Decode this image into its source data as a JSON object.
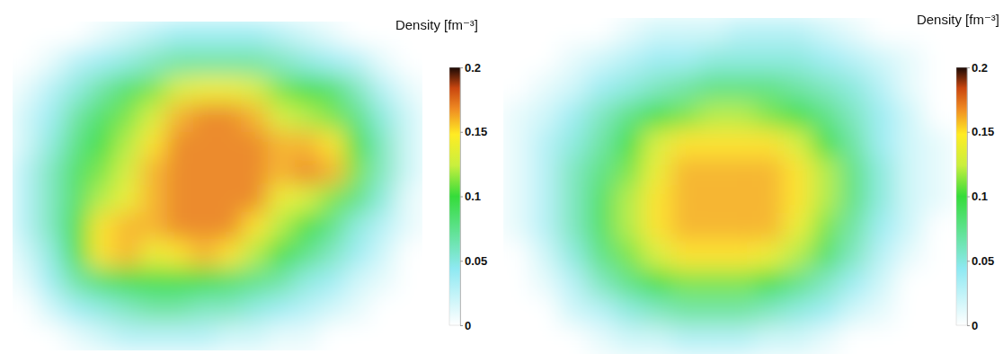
{
  "chart_data": [
    {
      "type": "heatmap",
      "title": "Density [fm⁻³]",
      "colorbar": {
        "range": [
          0,
          0.2
        ],
        "ticks": [
          0,
          0.05,
          0.1,
          0.15,
          0.2
        ]
      },
      "cells": [
        [
          0,
          0,
          0,
          0.01,
          0.02,
          0.03,
          0.04,
          0.04,
          0.04,
          0.04,
          0.03,
          0.02,
          0.01,
          0,
          0,
          0
        ],
        [
          0,
          0.01,
          0.03,
          0.04,
          0.05,
          0.06,
          0.07,
          0.07,
          0.07,
          0.07,
          0.06,
          0.05,
          0.04,
          0.03,
          0.01,
          0
        ],
        [
          0.01,
          0.03,
          0.05,
          0.07,
          0.09,
          0.11,
          0.13,
          0.14,
          0.14,
          0.13,
          0.11,
          0.1,
          0.09,
          0.06,
          0.03,
          0.01
        ],
        [
          0.02,
          0.04,
          0.07,
          0.09,
          0.11,
          0.13,
          0.16,
          0.17,
          0.17,
          0.16,
          0.13,
          0.12,
          0.11,
          0.08,
          0.05,
          0.02
        ],
        [
          0.02,
          0.05,
          0.08,
          0.1,
          0.12,
          0.15,
          0.17,
          0.17,
          0.17,
          0.17,
          0.16,
          0.16,
          0.15,
          0.1,
          0.06,
          0.02
        ],
        [
          0.03,
          0.06,
          0.09,
          0.11,
          0.13,
          0.16,
          0.17,
          0.17,
          0.17,
          0.17,
          0.16,
          0.17,
          0.16,
          0.11,
          0.06,
          0.02
        ],
        [
          0.03,
          0.06,
          0.09,
          0.12,
          0.14,
          0.16,
          0.17,
          0.17,
          0.17,
          0.17,
          0.14,
          0.13,
          0.11,
          0.08,
          0.05,
          0.01
        ],
        [
          0.03,
          0.06,
          0.1,
          0.15,
          0.16,
          0.16,
          0.17,
          0.17,
          0.17,
          0.15,
          0.12,
          0.1,
          0.08,
          0.05,
          0.03,
          0.01
        ],
        [
          0.02,
          0.05,
          0.1,
          0.15,
          0.16,
          0.14,
          0.15,
          0.16,
          0.15,
          0.12,
          0.1,
          0.08,
          0.06,
          0.04,
          0.02,
          0
        ],
        [
          0.01,
          0.04,
          0.07,
          0.09,
          0.1,
          0.1,
          0.1,
          0.1,
          0.09,
          0.08,
          0.07,
          0.05,
          0.04,
          0.02,
          0.01,
          0
        ],
        [
          0,
          0.02,
          0.04,
          0.05,
          0.06,
          0.07,
          0.07,
          0.06,
          0.06,
          0.05,
          0.04,
          0.03,
          0.02,
          0.01,
          0,
          0
        ],
        [
          0,
          0,
          0.01,
          0.02,
          0.03,
          0.03,
          0.03,
          0.03,
          0.02,
          0.02,
          0.01,
          0.01,
          0,
          0,
          0,
          0
        ]
      ]
    },
    {
      "type": "heatmap",
      "title": "Density [fm⁻³]",
      "colorbar": {
        "range": [
          0,
          0.2
        ],
        "ticks": [
          0,
          0.05,
          0.1,
          0.15,
          0.2
        ]
      },
      "cells": [
        [
          0,
          0,
          0,
          0,
          0.01,
          0.02,
          0.02,
          0.02,
          0.03,
          0.03,
          0.03,
          0.02,
          0.01,
          0,
          0,
          0
        ],
        [
          0,
          0,
          0.01,
          0.02,
          0.03,
          0.04,
          0.04,
          0.05,
          0.05,
          0.05,
          0.05,
          0.04,
          0.03,
          0.02,
          0.01,
          0
        ],
        [
          0,
          0.01,
          0.02,
          0.04,
          0.05,
          0.06,
          0.07,
          0.08,
          0.08,
          0.08,
          0.07,
          0.06,
          0.05,
          0.03,
          0.01,
          0
        ],
        [
          0.01,
          0.02,
          0.04,
          0.06,
          0.08,
          0.1,
          0.11,
          0.12,
          0.12,
          0.11,
          0.1,
          0.08,
          0.06,
          0.04,
          0.02,
          0
        ],
        [
          0.01,
          0.03,
          0.05,
          0.07,
          0.1,
          0.13,
          0.15,
          0.15,
          0.15,
          0.15,
          0.13,
          0.1,
          0.07,
          0.04,
          0.02,
          0.01
        ],
        [
          0.01,
          0.03,
          0.06,
          0.08,
          0.11,
          0.14,
          0.16,
          0.16,
          0.16,
          0.16,
          0.15,
          0.12,
          0.08,
          0.05,
          0.02,
          0.01
        ],
        [
          0.01,
          0.03,
          0.06,
          0.09,
          0.12,
          0.15,
          0.16,
          0.16,
          0.16,
          0.16,
          0.15,
          0.12,
          0.08,
          0.05,
          0.02,
          0.01
        ],
        [
          0.01,
          0.03,
          0.06,
          0.09,
          0.12,
          0.15,
          0.16,
          0.16,
          0.16,
          0.16,
          0.14,
          0.11,
          0.07,
          0.04,
          0.02,
          0
        ],
        [
          0,
          0.02,
          0.05,
          0.08,
          0.11,
          0.13,
          0.15,
          0.15,
          0.15,
          0.14,
          0.12,
          0.09,
          0.06,
          0.03,
          0.01,
          0
        ],
        [
          0,
          0.01,
          0.03,
          0.06,
          0.08,
          0.1,
          0.11,
          0.11,
          0.11,
          0.1,
          0.08,
          0.06,
          0.04,
          0.02,
          0,
          0
        ],
        [
          0,
          0,
          0.02,
          0.03,
          0.05,
          0.06,
          0.07,
          0.07,
          0.07,
          0.06,
          0.05,
          0.04,
          0.02,
          0.01,
          0,
          0
        ],
        [
          0,
          0,
          0,
          0.01,
          0.02,
          0.02,
          0.03,
          0.03,
          0.03,
          0.02,
          0.02,
          0.01,
          0,
          0,
          0,
          0
        ]
      ]
    }
  ]
}
